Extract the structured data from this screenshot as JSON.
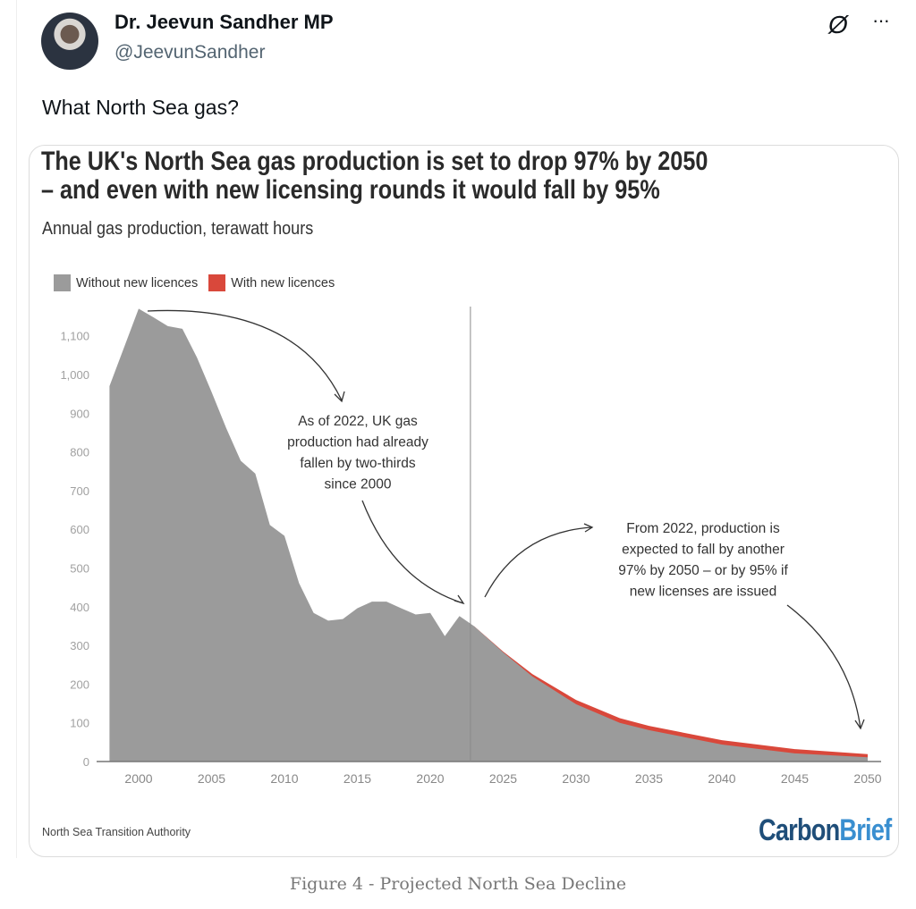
{
  "tweet": {
    "author_name": "Dr. Jeevun Sandher MP",
    "handle": "@JeevunSandher",
    "text": "What North Sea gas?",
    "icons": [
      "grok-icon",
      "more-options-icon"
    ]
  },
  "caption": "Figure 4 - Projected North Sea Decline",
  "chart_data": {
    "type": "area",
    "title": "The UK's North Sea gas production is set to drop 97% by 2050 – and even with new licensing rounds it would fall by 95%",
    "title_line1": "The UK's North Sea gas production is set to drop 97% by 2050",
    "title_line2": "– and even with new licensing rounds it would fall by 95%",
    "subtitle": "Annual gas production, terawatt hours",
    "xlabel": "",
    "ylabel": "",
    "xlim": [
      1998,
      2050
    ],
    "ylim": [
      0,
      1200
    ],
    "x_ticks": [
      "2000",
      "2005",
      "2010",
      "2015",
      "2020",
      "2025",
      "2030",
      "2035",
      "2040",
      "2045",
      "2050"
    ],
    "y_ticks": [
      "0",
      "100",
      "200",
      "300",
      "400",
      "500",
      "600",
      "700",
      "800",
      "900",
      "1,000",
      "1,100"
    ],
    "grid": false,
    "legend_position": "top-left",
    "series": [
      {
        "name": "Without new licences",
        "color": "#9b9b9b",
        "x": [
          1998,
          2000,
          2001,
          2002,
          2003,
          2004,
          2005,
          2006,
          2007,
          2008,
          2009,
          2010,
          2011,
          2012,
          2013,
          2014,
          2015,
          2016,
          2017,
          2018,
          2019,
          2020,
          2021,
          2022,
          2023,
          2025,
          2027,
          2030,
          2033,
          2035,
          2040,
          2045,
          2050
        ],
        "values": [
          970,
          1170,
          1148,
          1125,
          1118,
          1044,
          955,
          862,
          777,
          744,
          611,
          583,
          461,
          384,
          364,
          368,
          396,
          413,
          413,
          396,
          380,
          384,
          324,
          376,
          350,
          282,
          220,
          148,
          100,
          81,
          44,
          21,
          11
        ]
      },
      {
        "name": "With new licences",
        "color": "#d9483b",
        "x": [
          2023,
          2025,
          2027,
          2030,
          2033,
          2035,
          2040,
          2045,
          2050
        ],
        "values": [
          350,
          284,
          226,
          159,
          112,
          92,
          55,
          32,
          19
        ]
      }
    ],
    "marker_line_year": 2023,
    "annotations": [
      {
        "lines": [
          "As of 2022, UK gas",
          "production had already",
          "fallen by two-thirds",
          "since 2000"
        ]
      },
      {
        "lines": [
          "From 2022, production is",
          "expected to fall by another",
          "97% by 2050 – or by 95% if",
          "new licenses are issued"
        ]
      }
    ],
    "source": "North Sea Transition Authority",
    "logo": "CarbonBrief"
  }
}
